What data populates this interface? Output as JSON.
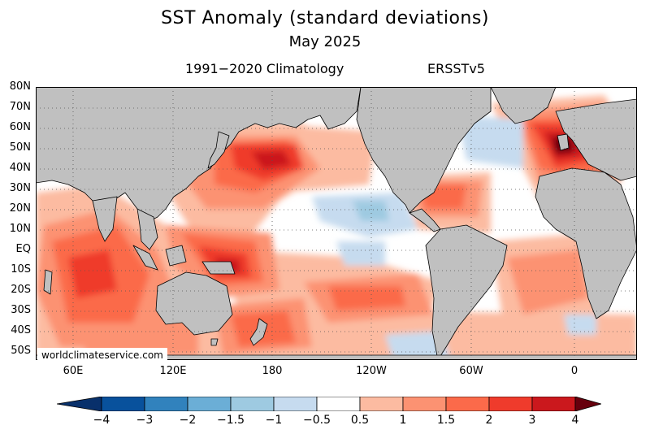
{
  "title": "SST Anomaly (standard deviations)",
  "subtitle": "May 2025",
  "climatology": "1991−2020 Climatology",
  "dataset": "ERSSTv5",
  "credit": "worldclimateservice.com",
  "lat_labels": [
    "80N",
    "70N",
    "60N",
    "50N",
    "40N",
    "30N",
    "20N",
    "10N",
    "EQ",
    "10S",
    "20S",
    "30S",
    "40S",
    "50S"
  ],
  "lon_labels": [
    "60E",
    "120E",
    "180",
    "120W",
    "60W",
    "0"
  ],
  "colorbar": {
    "labels": [
      "−4",
      "−3",
      "−2",
      "−1.5",
      "−1",
      "−0.5",
      "0.5",
      "1",
      "1.5",
      "2",
      "3",
      "4"
    ],
    "colors": [
      "#08519c",
      "#3182bd",
      "#6baed6",
      "#9ecae1",
      "#c6dbef",
      "#ffffff",
      "#fcbba1",
      "#fc9272",
      "#fb6a4a",
      "#ef3b2c",
      "#cb181d"
    ],
    "low_arrow_color": "#08306b",
    "high_arrow_color": "#67000d"
  },
  "map_colors": {
    "land": "#c0c0c0",
    "ocean_neutral": "#ffffff",
    "coast": "#000000",
    "grid": "#555555"
  },
  "anomaly_regions": [
    {
      "name": "north-pacific-warm-core",
      "level": "3"
    },
    {
      "name": "nw-pacific-warm",
      "level": "2"
    },
    {
      "name": "maritime-continent-warm",
      "level": "3"
    },
    {
      "name": "indian-ocean-warm",
      "level": "1.5"
    },
    {
      "name": "tasman-sea-warm",
      "level": "2"
    },
    {
      "name": "south-pacific-warm",
      "level": "1.5"
    },
    {
      "name": "ne-atlantic-warm-core",
      "level": "4"
    },
    {
      "name": "caribbean-warm",
      "level": "1.5"
    },
    {
      "name": "east-pacific-cool",
      "level": "-1"
    },
    {
      "name": "north-atlantic-cool",
      "level": "-1"
    }
  ]
}
